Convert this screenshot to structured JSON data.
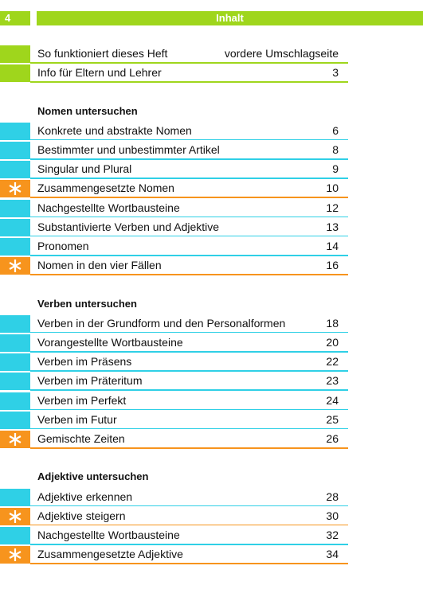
{
  "header": {
    "page": "4",
    "title": "Inhalt"
  },
  "intro": {
    "color": "#9fd61c",
    "entries": [
      {
        "title": "So funktioniert dieses Heft",
        "page": "vordere Umschlagseite"
      },
      {
        "title": "Info für Eltern und Lehrer",
        "page": 3
      }
    ]
  },
  "sections": [
    {
      "title": "Nomen untersuchen",
      "color": "#2fd0e6",
      "entries": [
        {
          "title": "Konkrete und abstrakte Nomen",
          "page": 6
        },
        {
          "title": "Bestimmter und unbestimmter Artikel",
          "page": 8
        },
        {
          "title": "Singular und Plural",
          "page": 9
        },
        {
          "title": "Zusammengesetzte Nomen",
          "page": 10,
          "highlight": true
        },
        {
          "title": "Nachgestellte Wortbausteine",
          "page": 12
        },
        {
          "title": "Substantivierte Verben und Adjektive",
          "page": 13
        },
        {
          "title": "Pronomen",
          "page": 14
        },
        {
          "title": "Nomen in den vier Fällen",
          "page": 16,
          "highlight": true
        }
      ]
    },
    {
      "title": "Verben untersuchen",
      "color": "#2fd0e6",
      "entries": [
        {
          "title": "Verben in der Grundform und den Personalformen",
          "page": 18
        },
        {
          "title": "Vorangestellte Wortbausteine",
          "page": 20
        },
        {
          "title": "Verben im Präsens",
          "page": 22
        },
        {
          "title": "Verben im Präteritum",
          "page": 23
        },
        {
          "title": "Verben im Perfekt",
          "page": 24
        },
        {
          "title": "Verben im Futur",
          "page": 25
        },
        {
          "title": "Gemischte Zeiten",
          "page": 26,
          "highlight": true
        }
      ]
    },
    {
      "title": "Adjektive untersuchen",
      "color": "#2fd0e6",
      "entries": [
        {
          "title": "Adjektive erkennen",
          "page": 28
        },
        {
          "title": "Adjektive steigern",
          "page": 30,
          "highlight": true
        },
        {
          "title": "Nachgestellte Wortbausteine",
          "page": 32
        },
        {
          "title": "Zusammengesetzte Adjektive",
          "page": 34,
          "highlight": true
        }
      ]
    }
  ],
  "highlight_color": "#f7941d"
}
